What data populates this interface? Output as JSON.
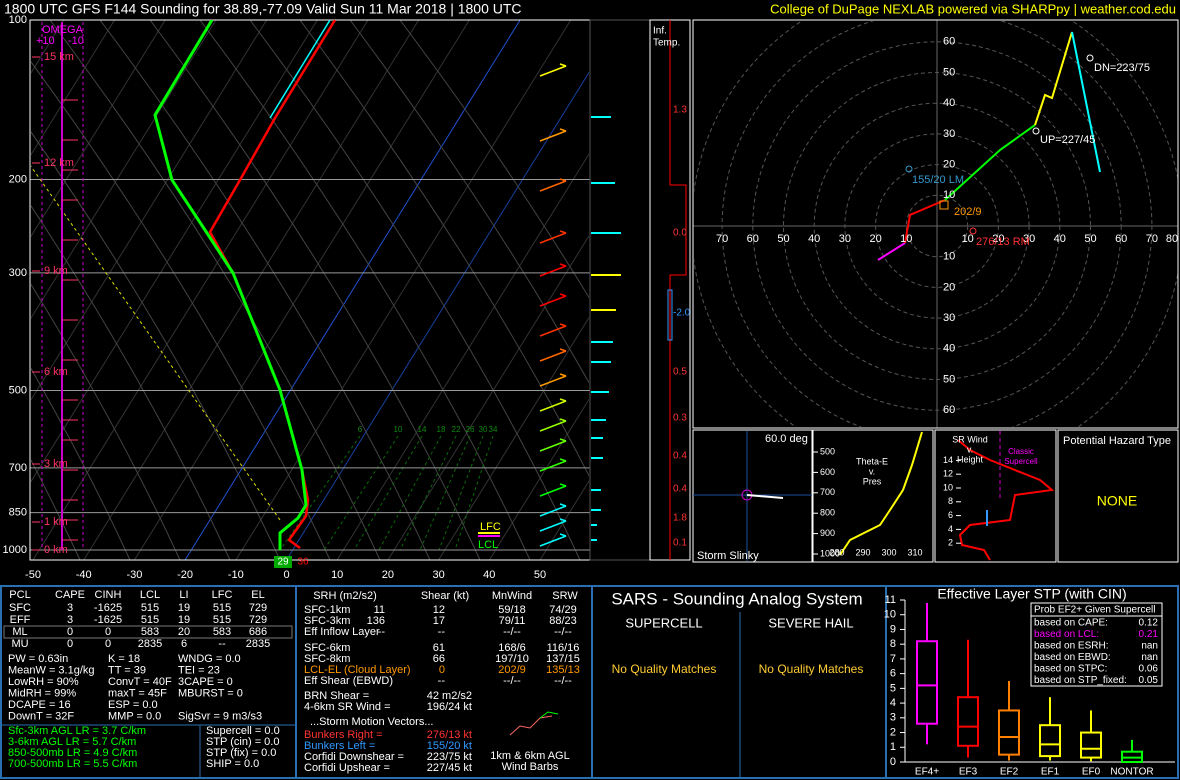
{
  "header": {
    "title": "1800 UTC GFS F144 Sounding for 38.89,-77.09 Valid  Sun 11 Mar 2018 | 1800 UTC",
    "credit": "College of DuPage NEXLAB powered via SHARPpy | weather.cod.edu"
  },
  "skewt": {
    "pressure_labels": [
      100,
      200,
      300,
      500,
      700,
      850,
      1000
    ],
    "temp_labels": [
      -50,
      -40,
      -30,
      -20,
      -10,
      0,
      10,
      20,
      30,
      40,
      50
    ],
    "height_labels": [
      "15 km",
      "12 km",
      "9 km",
      "6 km",
      "3 km",
      "1 km",
      "0 km"
    ],
    "omega": "OMEGA",
    "omega_ticks": [
      "+10",
      "-10"
    ],
    "mixing_ratio_labels": [
      "6",
      "10",
      "14",
      "18",
      "22",
      "26",
      "30",
      "34"
    ],
    "sfc_dewpoint": "29",
    "sfc_temp": "36",
    "lfc": "LFC",
    "lcl": "LCL"
  },
  "inferred": {
    "title": [
      "Inf.",
      "Temp."
    ],
    "labels": [
      "1.3",
      "0.0",
      "-2.0",
      "0.5",
      "0.3",
      "0.4",
      "0.4",
      "1.8",
      "0.1"
    ]
  },
  "hodograph": {
    "rings": [
      10,
      20,
      30,
      40,
      50,
      60
    ],
    "x_left": [
      70,
      60,
      50,
      40,
      30,
      20,
      10
    ],
    "x_right": [
      10,
      20,
      30,
      40,
      50,
      60,
      70,
      80
    ],
    "dn": "DN=223/75",
    "up": "UP=227/45",
    "lm": "155/20 LM",
    "mean": "202/9",
    "rm": "276/13 RM"
  },
  "slinky": {
    "angle": "60.0 deg",
    "title": "Storm Slinky"
  },
  "thetae": {
    "title": [
      "Theta-E",
      "v.",
      "Pres"
    ],
    "pres_ticks": [
      500,
      600,
      700,
      800,
      900,
      1000
    ],
    "temp_ticks": [
      280,
      290,
      300,
      310
    ]
  },
  "srwind": {
    "title": [
      "SR Wind",
      "v.",
      "Height"
    ],
    "classic": [
      "Classic",
      "Supercell"
    ],
    "height_ticks": [
      14,
      12,
      10,
      8,
      6,
      4,
      2
    ]
  },
  "hazard": {
    "title": "Potential Hazard Type",
    "value": "NONE"
  },
  "parcels": {
    "header": [
      "PCL",
      "CAPE",
      "CINH",
      "LCL",
      "LI",
      "LFC",
      "EL"
    ],
    "rows": [
      [
        "SFC",
        "3",
        "-1625",
        "515",
        "19",
        "515",
        "729"
      ],
      [
        "EFF",
        "3",
        "-1625",
        "515",
        "19",
        "515",
        "729"
      ],
      [
        "ML",
        "0",
        "0",
        "583",
        "20",
        "583",
        "686"
      ],
      [
        "MU",
        "0",
        "0",
        "2835",
        "6",
        "--",
        "2835"
      ]
    ]
  },
  "indices": [
    [
      "PW = 0.63in",
      "K = 18",
      "WNDG = 0.0"
    ],
    [
      "MeanW = 3.1g/kg",
      "TT = 39",
      "TEI = 23"
    ],
    [
      "LowRH = 90%",
      "ConvT = 40F",
      "3CAPE = 0"
    ],
    [
      "MidRH = 99%",
      "maxT = 45F",
      "MBURST = 0"
    ],
    [
      "DCAPE = 16",
      "ESP = 0.0"
    ],
    [
      "DownT = 32F",
      "MMP = 0.0",
      "SigSvr = 9 m3/s3"
    ]
  ],
  "lapse_rates": [
    "Sfc-3km AGL LR = 3.7 C/km",
    "3-6km AGL LR = 5.7 C/km",
    "850-500mb LR = 4.9 C/km",
    "700-500mb LR = 5.5 C/km"
  ],
  "composites": [
    "Supercell = 0.0",
    "STP (cin) = 0.0",
    "STP (fix) = 0.0",
    "SHIP = 0.0"
  ],
  "kinematics": {
    "header": [
      "SRH (m2/s2)",
      "Shear (kt)",
      "MnWind",
      "SRW"
    ],
    "rows": [
      {
        "label": "SFC-1km",
        "srh": "11",
        "shear": "12",
        "mnwind": "59/18",
        "srw": "74/29"
      },
      {
        "label": "SFC-3km",
        "srh": "136",
        "shear": "17",
        "mnwind": "79/11",
        "srw": "88/23"
      },
      {
        "label": "Eff Inflow Layer",
        "srh": "--",
        "shear": "--",
        "mnwind": "--/--",
        "srw": "--/--"
      },
      {
        "label": "SFC-6km",
        "shear": "61",
        "mnwind": "168/6",
        "srw": "116/16"
      },
      {
        "label": "SFC-8km",
        "shear": "66",
        "mnwind": "197/10",
        "srw": "137/15"
      },
      {
        "label": "LCL-EL (Cloud Layer)",
        "shear": "0",
        "mnwind": "202/9",
        "srw": "135/13"
      },
      {
        "label": "Eff Shear (EBWD)",
        "shear": "--",
        "mnwind": "--/--",
        "srw": "--/--"
      }
    ],
    "extra": [
      [
        "BRN Shear = ",
        "42 m2/s2"
      ],
      [
        "4-6km SR Wind = ",
        "196/24 kt"
      ]
    ],
    "motion_title": "...Storm Motion Vectors...",
    "motion": [
      [
        "Bunkers Right = ",
        "276/13 kt"
      ],
      [
        "Bunkers Left = ",
        "155/20 kt"
      ],
      [
        "Corfidi Downshear = ",
        "223/75 kt"
      ],
      [
        "Corfidi Upshear = ",
        "227/45 kt"
      ]
    ],
    "barbs_label": [
      "1km & 6km AGL",
      "Wind Barbs"
    ]
  },
  "sars": {
    "title": "SARS - Sounding Analog System",
    "supercell": "SUPERCELL",
    "hail": "SEVERE HAIL",
    "supercell_result": "No Quality Matches",
    "hail_result": "No Quality Matches"
  },
  "stp": {
    "title": "Effective Layer STP (with CIN)",
    "ylim": [
      0,
      11
    ],
    "yticks": [
      0,
      1,
      2,
      3,
      4,
      5,
      6,
      7,
      8,
      9,
      10,
      11
    ],
    "categories": [
      "EF4+",
      "EF3",
      "EF2",
      "EF1",
      "EF0",
      "NONTOR"
    ],
    "colors": [
      "#ff00ff",
      "#ff0000",
      "#ff8000",
      "#ffff00",
      "#ffff00",
      "#00ff00"
    ],
    "boxes": [
      [
        1.2,
        2.6,
        5.2,
        8.2,
        10.8
      ],
      [
        0.3,
        1.1,
        2.4,
        4.4,
        8.3
      ],
      [
        0.1,
        0.5,
        1.7,
        3.5,
        5.5
      ],
      [
        0.1,
        0.4,
        1.2,
        2.5,
        4.4
      ],
      [
        0.05,
        0.3,
        0.9,
        2.0,
        3.5
      ],
      [
        0,
        0,
        0.3,
        0.7,
        1.5
      ]
    ],
    "prob_title": "Prob EF2+ Given Supercell",
    "prob_rows": [
      [
        "based on CAPE:",
        "0.12"
      ],
      [
        "based on LCL:",
        "0.21"
      ],
      [
        "based on ESRH:",
        "nan"
      ],
      [
        "based on EBWD:",
        "nan"
      ],
      [
        "based on STPC:",
        "0.06"
      ],
      [
        "based on STP_fixed:",
        "0.05"
      ]
    ]
  }
}
